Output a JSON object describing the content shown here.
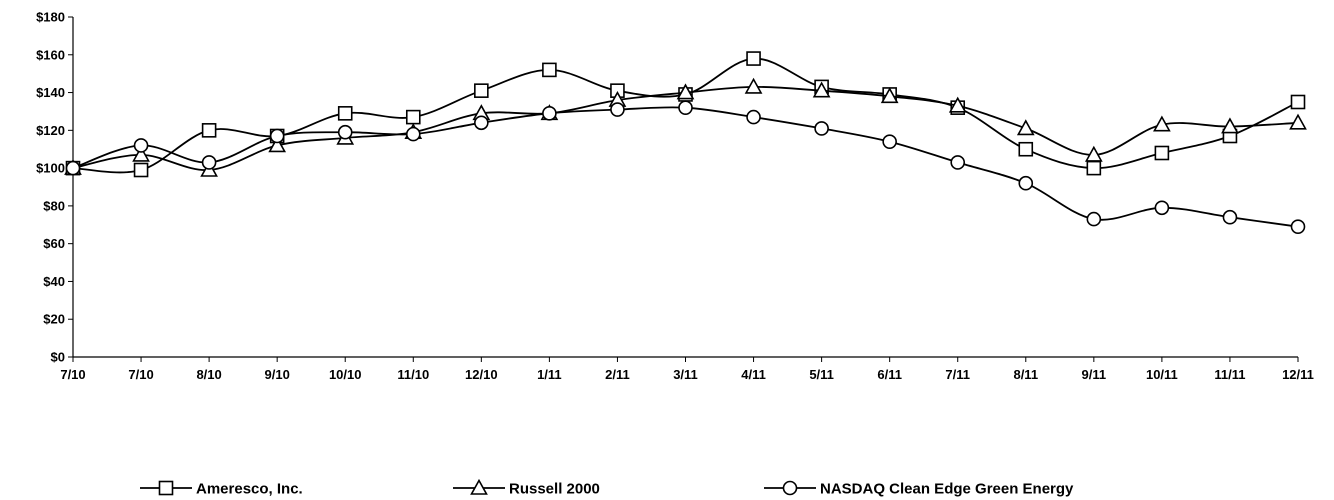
{
  "chart_data": {
    "type": "line",
    "title": "",
    "xlabel": "",
    "ylabel": "",
    "categories": [
      "7/10",
      "7/10",
      "8/10",
      "9/10",
      "10/10",
      "11/10",
      "12/10",
      "1/11",
      "2/11",
      "3/11",
      "4/11",
      "5/11",
      "6/11",
      "7/11",
      "8/11",
      "9/11",
      "10/11",
      "11/11",
      "12/11"
    ],
    "yticks": [
      "$0",
      "$20",
      "$40",
      "$60",
      "$80",
      "$100",
      "$120",
      "$140",
      "$160",
      "$180"
    ],
    "ylim": [
      0,
      180
    ],
    "grid": false,
    "legend_position": "bottom",
    "series": [
      {
        "name": "Ameresco, Inc.",
        "marker": "square",
        "values": [
          100,
          99,
          120,
          117,
          129,
          127,
          141,
          152,
          141,
          139,
          158,
          143,
          139,
          132,
          110,
          100,
          108,
          117,
          135
        ]
      },
      {
        "name": "Russell 2000",
        "marker": "triangle",
        "values": [
          100,
          107,
          99,
          112,
          116,
          119,
          129,
          129,
          136,
          140,
          143,
          141,
          138,
          133,
          121,
          107,
          123,
          122,
          124
        ]
      },
      {
        "name": "NASDAQ Clean Edge Green Energy",
        "marker": "circle",
        "values": [
          100,
          112,
          103,
          117,
          119,
          118,
          124,
          129,
          131,
          132,
          127,
          121,
          114,
          103,
          92,
          73,
          79,
          74,
          69
        ]
      }
    ],
    "colors": {
      "line": "#000000",
      "marker_fill": "#ffffff"
    }
  }
}
